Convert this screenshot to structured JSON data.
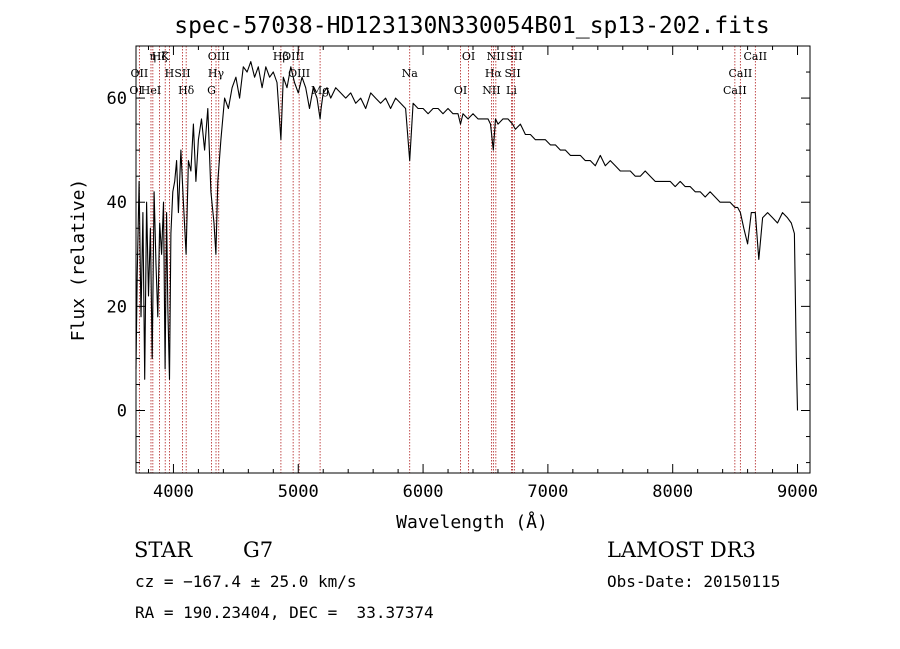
{
  "chart_data": {
    "type": "line",
    "title": "spec-57038-HD123130N330054B01_sp13-202.fits",
    "xlabel": "Wavelength (Å)",
    "ylabel": "Flux (relative)",
    "xlim": [
      3700,
      9100
    ],
    "ylim": [
      -12,
      70
    ],
    "x_ticks": [
      4000,
      5000,
      6000,
      7000,
      8000,
      9000
    ],
    "x_tick_labels": [
      "4000",
      "5000",
      "6000",
      "7000",
      "8000",
      "9000"
    ],
    "y_ticks": [
      0,
      20,
      40,
      60
    ],
    "y_tick_labels": [
      "0",
      "20",
      "40",
      "60"
    ],
    "series": [
      {
        "name": "flux",
        "color": "#000000",
        "x": [
          3700,
          3710,
          3725,
          3740,
          3755,
          3770,
          3785,
          3800,
          3815,
          3830,
          3845,
          3860,
          3875,
          3890,
          3905,
          3920,
          3933,
          3945,
          3955,
          3968,
          3980,
          3995,
          4010,
          4025,
          4040,
          4060,
          4080,
          4101,
          4120,
          4140,
          4160,
          4180,
          4200,
          4225,
          4250,
          4275,
          4300,
          4325,
          4340,
          4355,
          4380,
          4410,
          4440,
          4470,
          4500,
          4530,
          4560,
          4590,
          4620,
          4650,
          4680,
          4710,
          4740,
          4770,
          4800,
          4830,
          4861,
          4880,
          4910,
          4940,
          4970,
          5000,
          5030,
          5060,
          5090,
          5120,
          5150,
          5175,
          5183,
          5200,
          5230,
          5260,
          5300,
          5340,
          5380,
          5420,
          5460,
          5500,
          5540,
          5580,
          5620,
          5660,
          5700,
          5740,
          5780,
          5820,
          5860,
          5893,
          5920,
          5960,
          6000,
          6040,
          6080,
          6120,
          6160,
          6200,
          6240,
          6280,
          6300,
          6320,
          6360,
          6400,
          6440,
          6480,
          6520,
          6540,
          6563,
          6580,
          6600,
          6640,
          6680,
          6717,
          6740,
          6780,
          6820,
          6860,
          6900,
          6940,
          6980,
          7020,
          7060,
          7100,
          7140,
          7180,
          7220,
          7260,
          7300,
          7340,
          7380,
          7420,
          7460,
          7500,
          7540,
          7580,
          7620,
          7660,
          7700,
          7740,
          7780,
          7820,
          7860,
          7900,
          7940,
          7980,
          8020,
          8060,
          8100,
          8140,
          8180,
          8220,
          8260,
          8300,
          8340,
          8380,
          8420,
          8460,
          8498,
          8520,
          8542,
          8570,
          8600,
          8630,
          8662,
          8690,
          8720,
          8760,
          8800,
          8840,
          8880,
          8920,
          8950,
          8975,
          8990,
          9000
        ],
        "y": [
          8,
          26,
          44,
          18,
          38,
          6,
          40,
          22,
          35,
          10,
          42,
          28,
          18,
          36,
          30,
          40,
          8,
          38,
          20,
          6,
          34,
          42,
          44,
          48,
          38,
          50,
          40,
          30,
          48,
          46,
          55,
          44,
          52,
          56,
          50,
          58,
          42,
          36,
          30,
          44,
          52,
          60,
          58,
          62,
          64,
          60,
          66,
          65,
          67,
          64,
          66,
          62,
          66,
          64,
          65,
          63,
          52,
          64,
          62,
          66,
          63,
          61,
          64,
          62,
          58,
          62,
          60,
          56,
          58,
          61,
          62,
          60,
          62,
          61,
          60,
          61,
          59,
          60,
          58,
          61,
          60,
          59,
          60,
          58,
          60,
          59,
          58,
          48,
          59,
          58,
          58,
          57,
          58,
          58,
          57,
          58,
          57,
          57,
          55,
          57,
          56,
          57,
          56,
          56,
          56,
          55,
          50,
          56,
          55,
          56,
          56,
          55,
          54,
          55,
          53,
          53,
          52,
          52,
          52,
          51,
          51,
          50,
          50,
          49,
          49,
          49,
          48,
          48,
          47,
          49,
          47,
          48,
          47,
          46,
          46,
          46,
          45,
          45,
          46,
          45,
          44,
          44,
          44,
          44,
          43,
          44,
          43,
          43,
          42,
          42,
          41,
          42,
          41,
          40,
          40,
          40,
          39,
          39,
          38,
          35,
          32,
          38,
          38,
          29,
          37,
          38,
          37,
          36,
          38,
          37,
          36,
          34,
          10,
          0
        ]
      }
    ],
    "line_markers": [
      {
        "label": "Hζ",
        "wavelength": 3889
      },
      {
        "label": "OII",
        "wavelength": 3727
      },
      {
        "label": "OI",
        "wavelength": 3700
      },
      {
        "label": "K",
        "wavelength": 3934
      },
      {
        "label": "H",
        "wavelength": 3968
      },
      {
        "label": "HeI",
        "wavelength": 3820
      },
      {
        "label": "η",
        "wavelength": 3835
      },
      {
        "label": "SII",
        "wavelength": 4072
      },
      {
        "label": "Hδ",
        "wavelength": 4102
      },
      {
        "label": "OIII",
        "wavelength": 4363
      },
      {
        "label": "Hγ",
        "wavelength": 4341
      },
      {
        "label": "G",
        "wavelength": 4305
      },
      {
        "label": "OIII",
        "wavelength": 4959
      },
      {
        "label": "OIII",
        "wavelength": 5007
      },
      {
        "label": "Mg",
        "wavelength": 5175
      },
      {
        "label": "Hβ",
        "wavelength": 4861
      },
      {
        "label": "Na",
        "wavelength": 5893
      },
      {
        "label": "OI",
        "wavelength": 6300
      },
      {
        "label": "OI",
        "wavelength": 6364
      },
      {
        "label": "Hα",
        "wavelength": 6563
      },
      {
        "label": "NII",
        "wavelength": 6548
      },
      {
        "label": "NII",
        "wavelength": 6583
      },
      {
        "label": "SII",
        "wavelength": 6717
      },
      {
        "label": "Li",
        "wavelength": 6708
      },
      {
        "label": "SII",
        "wavelength": 6731
      },
      {
        "label": "CaII",
        "wavelength": 8542
      },
      {
        "label": "CaII",
        "wavelength": 8498
      },
      {
        "label": "CaII",
        "wavelength": 8662
      }
    ]
  },
  "info": {
    "object_class": "STAR",
    "subclass": "G7",
    "survey": "LAMOST DR3",
    "redshift": "cz = −167.4 ± 25.0 km/s",
    "obs_date": "Obs-Date: 20150115",
    "coords": "RA = 190.23404, DEC =  33.37374"
  },
  "colors": {
    "axis": "#000000",
    "marker_line": "#b22222",
    "spectrum": "#000000"
  }
}
